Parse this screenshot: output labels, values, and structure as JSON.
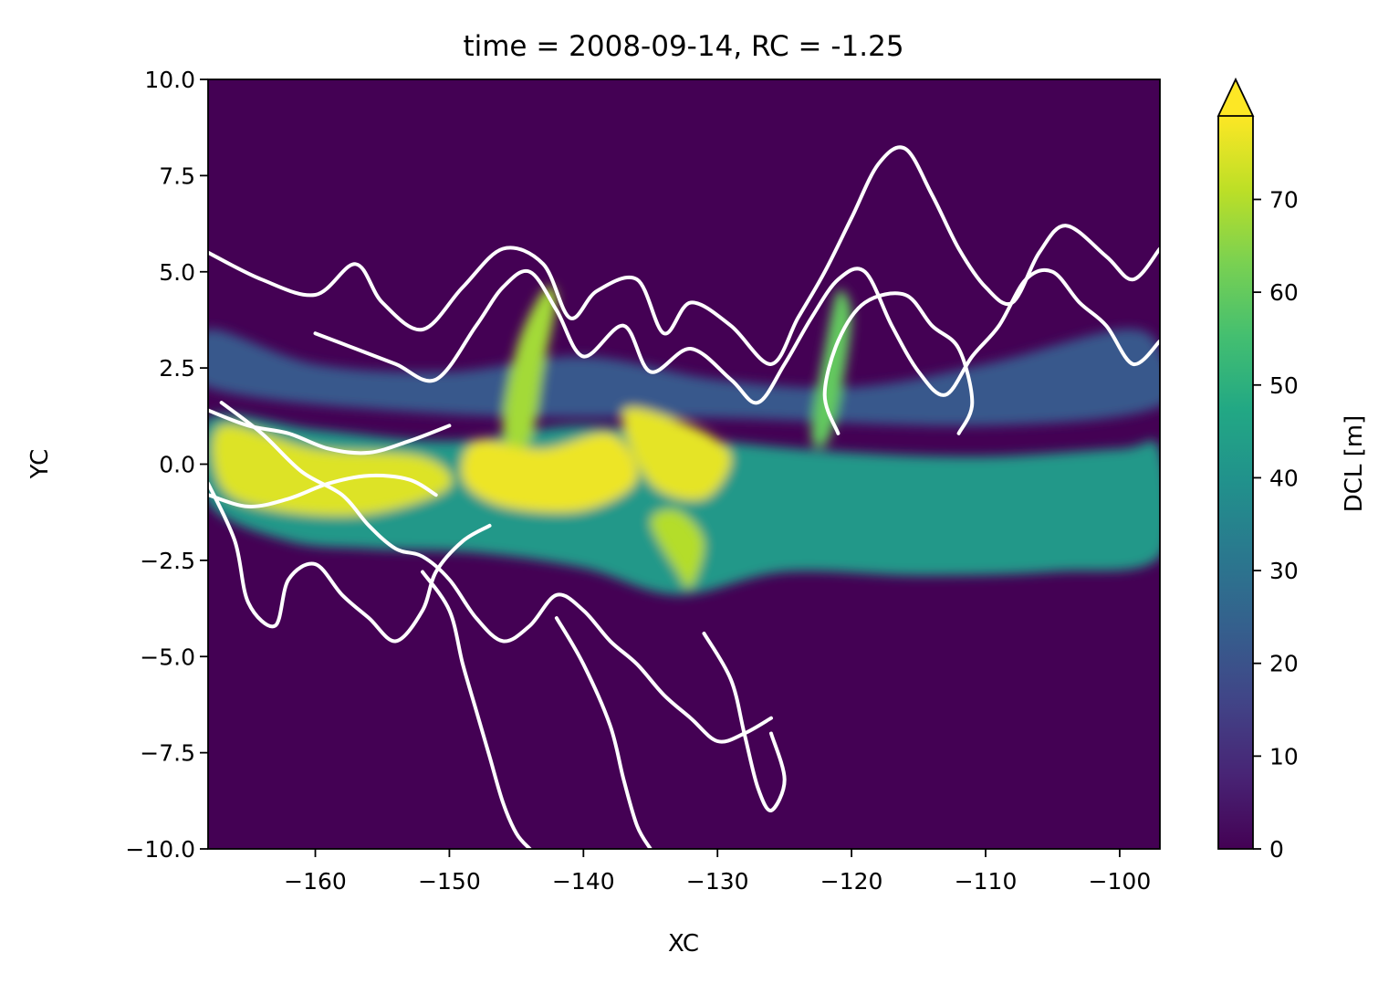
{
  "chart_data": {
    "type": "heatmap",
    "title": "time = 2008-09-14, RC = -1.25",
    "xlabel": "XC",
    "ylabel": "YC",
    "xlim": [
      -168,
      -97
    ],
    "ylim": [
      -10,
      10
    ],
    "x_ticks": [
      {
        "value": -160,
        "label": "−160"
      },
      {
        "value": -150,
        "label": "−150"
      },
      {
        "value": -140,
        "label": "−140"
      },
      {
        "value": -130,
        "label": "−130"
      },
      {
        "value": -120,
        "label": "−120"
      },
      {
        "value": -110,
        "label": "−110"
      },
      {
        "value": -100,
        "label": "−100"
      }
    ],
    "y_ticks": [
      {
        "value": 10,
        "label": "10.0"
      },
      {
        "value": 7.5,
        "label": "7.5"
      },
      {
        "value": 5,
        "label": "5.0"
      },
      {
        "value": 2.5,
        "label": "2.5"
      },
      {
        "value": 0,
        "label": "0.0"
      },
      {
        "value": -2.5,
        "label": "−2.5"
      },
      {
        "value": -5,
        "label": "−5.0"
      },
      {
        "value": -7.5,
        "label": "−7.5"
      },
      {
        "value": -10,
        "label": "−10.0"
      }
    ],
    "colorbar": {
      "label": "DCL [m]",
      "colormap": "viridis",
      "range": [
        0,
        79
      ],
      "extend": "max",
      "ticks": [
        {
          "value": 0,
          "label": "0"
        },
        {
          "value": 10,
          "label": "10"
        },
        {
          "value": 20,
          "label": "20"
        },
        {
          "value": 30,
          "label": "30"
        },
        {
          "value": 40,
          "label": "40"
        },
        {
          "value": 50,
          "label": "50"
        },
        {
          "value": 60,
          "label": "60"
        },
        {
          "value": 70,
          "label": "70"
        }
      ]
    },
    "background_value": 0,
    "field_features": [
      {
        "name": "equatorial band",
        "value": 42,
        "points": [
          [
            -168,
            1.2
          ],
          [
            -160,
            0.9
          ],
          [
            -150,
            0.6
          ],
          [
            -140,
            1.0
          ],
          [
            -130,
            0.6
          ],
          [
            -120,
            0.3
          ],
          [
            -110,
            0.2
          ],
          [
            -100,
            0.4
          ],
          [
            -97,
            0.4
          ],
          [
            -97,
            -2.4
          ],
          [
            -105,
            -2.8
          ],
          [
            -115,
            -2.9
          ],
          [
            -125,
            -2.8
          ],
          [
            -133,
            -3.4
          ],
          [
            -140,
            -2.7
          ],
          [
            -148,
            -2.3
          ],
          [
            -156,
            -2.2
          ],
          [
            -162,
            -2.0
          ],
          [
            -168,
            -1.0
          ]
        ]
      },
      {
        "name": "north band",
        "value": 22,
        "points": [
          [
            -168,
            3.5
          ],
          [
            -160,
            2.6
          ],
          [
            -150,
            2.4
          ],
          [
            -140,
            2.8
          ],
          [
            -130,
            2.2
          ],
          [
            -120,
            2.0
          ],
          [
            -110,
            2.6
          ],
          [
            -100,
            3.5
          ],
          [
            -97,
            3.0
          ],
          [
            -97,
            1.5
          ],
          [
            -110,
            1.0
          ],
          [
            -130,
            1.2
          ],
          [
            -150,
            1.3
          ],
          [
            -168,
            2.0
          ]
        ]
      },
      {
        "name": "core west",
        "value": 75,
        "points": [
          [
            -167,
            1.0
          ],
          [
            -160,
            0.4
          ],
          [
            -152,
            0.2
          ],
          [
            -150,
            -0.6
          ],
          [
            -156,
            -1.3
          ],
          [
            -163,
            -1.2
          ],
          [
            -167,
            -0.6
          ]
        ]
      },
      {
        "name": "core central",
        "value": 77,
        "points": [
          [
            -148,
            0.6
          ],
          [
            -143,
            0.4
          ],
          [
            -138,
            0.8
          ],
          [
            -136,
            -0.4
          ],
          [
            -140,
            -1.2
          ],
          [
            -146,
            -1.1
          ],
          [
            -149,
            -0.4
          ]
        ]
      },
      {
        "name": "core east",
        "value": 76,
        "points": [
          [
            -137,
            1.4
          ],
          [
            -132,
            1.0
          ],
          [
            -129,
            0.2
          ],
          [
            -131,
            -0.9
          ],
          [
            -135,
            -0.5
          ]
        ]
      },
      {
        "name": "wave crest 1",
        "value": 68,
        "points": [
          [
            -146,
            0.8
          ],
          [
            -145,
            3.0
          ],
          [
            -143,
            4.5
          ],
          [
            -142,
            4.3
          ],
          [
            -143,
            2.5
          ],
          [
            -144,
            0.6
          ]
        ]
      },
      {
        "name": "wave crest 2",
        "value": 60,
        "points": [
          [
            -123,
            0.8
          ],
          [
            -122,
            3.0
          ],
          [
            -121,
            4.5
          ],
          [
            -120,
            3.8
          ],
          [
            -121,
            1.5
          ],
          [
            -122,
            0.5
          ]
        ]
      },
      {
        "name": "filament",
        "value": 70,
        "points": [
          [
            -135,
            -1.5
          ],
          [
            -133,
            -2.8
          ],
          [
            -132,
            -3.2
          ],
          [
            -131,
            -2.0
          ],
          [
            -133,
            -1.2
          ]
        ]
      }
    ],
    "contours": [
      {
        "name": "contour-north-outer",
        "points": [
          [
            -168,
            5.5
          ],
          [
            -164,
            4.8
          ],
          [
            -160,
            4.4
          ],
          [
            -157,
            5.2
          ],
          [
            -155,
            4.2
          ],
          [
            -152,
            3.5
          ],
          [
            -149,
            4.6
          ],
          [
            -146,
            5.6
          ],
          [
            -143,
            5.2
          ],
          [
            -141,
            3.8
          ],
          [
            -139,
            4.5
          ],
          [
            -136,
            4.8
          ],
          [
            -134,
            3.4
          ],
          [
            -132,
            4.2
          ],
          [
            -129,
            3.6
          ],
          [
            -126,
            2.6
          ],
          [
            -124,
            3.8
          ],
          [
            -122,
            5.0
          ],
          [
            -120,
            6.4
          ],
          [
            -118,
            7.8
          ],
          [
            -116,
            8.2
          ],
          [
            -114,
            7.0
          ],
          [
            -112,
            5.6
          ],
          [
            -110,
            4.6
          ],
          [
            -108,
            4.2
          ],
          [
            -106,
            5.5
          ],
          [
            -104,
            6.2
          ],
          [
            -101,
            5.4
          ],
          [
            -99,
            4.8
          ],
          [
            -97,
            5.6
          ]
        ]
      },
      {
        "name": "contour-north-inner",
        "points": [
          [
            -160,
            3.4
          ],
          [
            -157,
            3.0
          ],
          [
            -154,
            2.6
          ],
          [
            -151,
            2.2
          ],
          [
            -148,
            3.6
          ],
          [
            -146,
            4.6
          ],
          [
            -144,
            5.0
          ],
          [
            -142,
            4.0
          ],
          [
            -140,
            2.8
          ],
          [
            -137,
            3.6
          ],
          [
            -135,
            2.4
          ],
          [
            -132,
            3.0
          ],
          [
            -129,
            2.2
          ],
          [
            -127,
            1.6
          ],
          [
            -125,
            2.6
          ],
          [
            -123,
            3.8
          ],
          [
            -121,
            4.8
          ],
          [
            -119,
            5.0
          ],
          [
            -117,
            3.6
          ],
          [
            -115,
            2.4
          ],
          [
            -113,
            1.8
          ],
          [
            -111,
            2.8
          ],
          [
            -109,
            3.6
          ],
          [
            -107,
            4.8
          ],
          [
            -105,
            5.0
          ],
          [
            -103,
            4.2
          ],
          [
            -101,
            3.6
          ],
          [
            -99,
            2.6
          ],
          [
            -97,
            3.2
          ]
        ]
      },
      {
        "name": "contour-north-loop",
        "points": [
          [
            -121,
            0.8
          ],
          [
            -122,
            1.8
          ],
          [
            -121,
            3.2
          ],
          [
            -119,
            4.2
          ],
          [
            -116,
            4.4
          ],
          [
            -114,
            3.6
          ],
          [
            -112,
            3.0
          ],
          [
            -111,
            1.6
          ],
          [
            -112,
            0.8
          ]
        ]
      },
      {
        "name": "contour-equator-1",
        "points": [
          [
            -168,
            1.4
          ],
          [
            -165,
            1.0
          ],
          [
            -162,
            0.8
          ],
          [
            -159,
            0.4
          ],
          [
            -156,
            0.3
          ],
          [
            -153,
            0.6
          ],
          [
            -150,
            1.0
          ]
        ]
      },
      {
        "name": "contour-equator-2",
        "points": [
          [
            -168,
            -0.8
          ],
          [
            -165,
            -1.1
          ],
          [
            -162,
            -0.9
          ],
          [
            -159,
            -0.5
          ],
          [
            -156,
            -0.3
          ],
          [
            -153,
            -0.4
          ],
          [
            -151,
            -0.8
          ]
        ]
      },
      {
        "name": "contour-equator-3",
        "points": [
          [
            -167,
            1.6
          ],
          [
            -164,
            0.8
          ],
          [
            -161,
            -0.2
          ],
          [
            -158,
            -0.8
          ],
          [
            -156,
            -1.6
          ],
          [
            -154,
            -2.2
          ],
          [
            -152,
            -2.4
          ],
          [
            -150,
            -3.0
          ],
          [
            -148,
            -4.0
          ],
          [
            -146,
            -4.6
          ],
          [
            -144,
            -4.2
          ],
          [
            -142,
            -3.4
          ],
          [
            -140,
            -3.8
          ],
          [
            -138,
            -4.6
          ],
          [
            -136,
            -5.2
          ],
          [
            -134,
            -6.0
          ],
          [
            -132,
            -6.6
          ],
          [
            -130,
            -7.2
          ],
          [
            -128,
            -7.0
          ],
          [
            -126,
            -6.6
          ]
        ]
      },
      {
        "name": "contour-south-outer",
        "points": [
          [
            -168,
            -0.5
          ],
          [
            -166,
            -2.0
          ],
          [
            -165,
            -3.6
          ],
          [
            -163,
            -4.2
          ],
          [
            -162,
            -3.0
          ],
          [
            -160,
            -2.6
          ],
          [
            -158,
            -3.4
          ],
          [
            -156,
            -4.0
          ],
          [
            -154,
            -4.6
          ],
          [
            -152,
            -3.8
          ],
          [
            -151,
            -2.8
          ],
          [
            -149,
            -2.0
          ],
          [
            -147,
            -1.6
          ]
        ]
      },
      {
        "name": "contour-south-lobe",
        "points": [
          [
            -152,
            -2.8
          ],
          [
            -150,
            -3.8
          ],
          [
            -149,
            -5.2
          ],
          [
            -148,
            -6.4
          ],
          [
            -147,
            -7.6
          ],
          [
            -146,
            -8.8
          ],
          [
            -145,
            -9.6
          ],
          [
            -144,
            -10.0
          ]
        ]
      },
      {
        "name": "contour-south-lobe-2",
        "points": [
          [
            -142,
            -4.0
          ],
          [
            -140,
            -5.2
          ],
          [
            -138,
            -6.8
          ],
          [
            -137,
            -8.2
          ],
          [
            -136,
            -9.4
          ],
          [
            -135,
            -10.0
          ]
        ]
      },
      {
        "name": "contour-south-lobe-3",
        "points": [
          [
            -131,
            -4.4
          ],
          [
            -129,
            -5.6
          ],
          [
            -128,
            -7.0
          ],
          [
            -127,
            -8.4
          ],
          [
            -126,
            -9.0
          ],
          [
            -125,
            -8.2
          ],
          [
            -126,
            -7.0
          ]
        ]
      }
    ]
  }
}
